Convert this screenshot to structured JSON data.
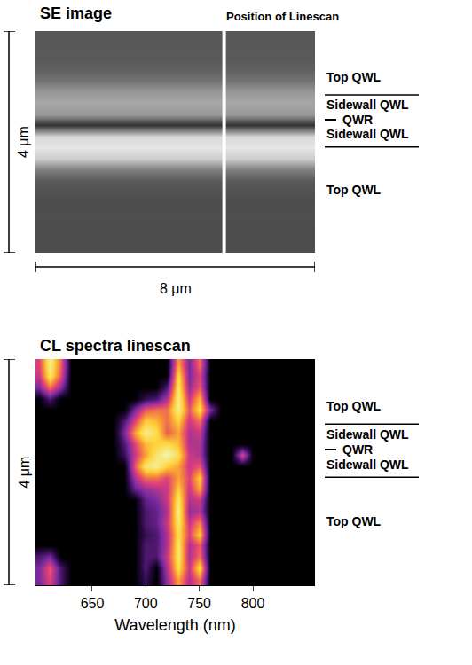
{
  "chart_data": [
    {
      "type": "heatmap",
      "title": "SE image",
      "color": "gray",
      "tick_labels": false,
      "linescan": {
        "x": 5.4,
        "label": "Position of Linescan"
      },
      "x_scale_label": "8 μm",
      "y_scale_label": "4 μm",
      "xlim": [
        0,
        8
      ],
      "ylim": [
        0,
        4
      ],
      "x": [
        2,
        6
      ],
      "y": [
        0.1,
        0.3,
        0.5,
        0.7,
        0.9,
        1.1,
        1.3,
        1.5,
        1.7,
        1.9,
        2.1,
        2.3,
        2.5,
        2.7,
        2.9,
        3.1,
        3.3,
        3.5,
        3.7,
        3.9
      ],
      "z": [
        [
          0.3,
          0.3
        ],
        [
          0.3,
          0.3
        ],
        [
          0.3,
          0.3
        ],
        [
          0.31,
          0.31
        ],
        [
          0.3,
          0.3
        ],
        [
          0.32,
          0.32
        ],
        [
          0.35,
          0.35
        ],
        [
          0.5,
          0.5
        ],
        [
          0.8,
          0.8
        ],
        [
          0.9,
          0.9
        ],
        [
          0.85,
          0.85
        ],
        [
          0.2,
          0.2
        ],
        [
          0.6,
          0.6
        ],
        [
          0.65,
          0.65
        ],
        [
          0.6,
          0.6
        ],
        [
          0.45,
          0.45
        ],
        [
          0.38,
          0.38
        ],
        [
          0.35,
          0.35
        ],
        [
          0.35,
          0.35
        ],
        [
          0.34,
          0.34
        ]
      ],
      "zlim": [
        0,
        1
      ],
      "annotations": [
        {
          "text": "Top QWL",
          "y": 3.17
        },
        {
          "text": "Sidewall QWL",
          "y": 2.67
        },
        {
          "text": "QWR",
          "y": 2.4,
          "marker": "dash"
        },
        {
          "text": "Sidewall QWL",
          "y": 2.14
        },
        {
          "text": "Top QWL",
          "y": 1.13
        }
      ],
      "region_bounds": [
        2.85,
        1.91
      ]
    },
    {
      "type": "heatmap",
      "title": "CL spectra linescan",
      "color": "hot",
      "tick_labels": "x",
      "x_label": "Wavelength (nm)",
      "y_scale_label": "4 μm",
      "xlim": [
        597,
        858
      ],
      "xticks": [
        650,
        700,
        750,
        800
      ],
      "ylim": [
        0,
        4
      ],
      "x": [
        600,
        610,
        620,
        630,
        640,
        650,
        660,
        670,
        680,
        690,
        700,
        710,
        720,
        730,
        740,
        750,
        760,
        770,
        780,
        790,
        800,
        810,
        820,
        830,
        840,
        850
      ],
      "y": [
        0.1,
        0.3,
        0.5,
        0.7,
        0.9,
        1.1,
        1.3,
        1.5,
        1.7,
        1.9,
        2.1,
        2.3,
        2.5,
        2.7,
        2.9,
        3.1,
        3.3,
        3.5,
        3.7,
        3.9
      ],
      "z": [
        [
          0.3,
          0.5,
          0.2,
          0,
          0,
          0,
          0,
          0,
          0,
          0,
          0.15,
          0,
          0.35,
          0.7,
          0.4,
          0.6,
          0,
          0,
          0,
          0,
          0,
          0,
          0,
          0,
          0,
          0
        ],
        [
          0.3,
          0.55,
          0.2,
          0,
          0,
          0,
          0,
          0,
          0,
          0,
          0.2,
          0,
          0.4,
          0.85,
          0.45,
          0.85,
          0,
          0,
          0,
          0,
          0,
          0,
          0,
          0,
          0,
          0
        ],
        [
          0.2,
          0.3,
          0,
          0,
          0,
          0,
          0,
          0,
          0,
          0,
          0.2,
          0.2,
          0.45,
          0.9,
          0.4,
          0.6,
          0,
          0,
          0,
          0,
          0,
          0,
          0,
          0,
          0,
          0
        ],
        [
          0,
          0,
          0,
          0,
          0,
          0,
          0,
          0,
          0,
          0,
          0.2,
          0.2,
          0.4,
          0.9,
          0.4,
          0.55,
          0,
          0,
          0,
          0,
          0,
          0,
          0,
          0,
          0,
          0
        ],
        [
          0,
          0,
          0,
          0,
          0,
          0,
          0,
          0,
          0,
          0,
          0.15,
          0.2,
          0.4,
          0.85,
          0.5,
          0.8,
          0,
          0,
          0,
          0,
          0,
          0,
          0,
          0,
          0,
          0
        ],
        [
          0,
          0,
          0,
          0,
          0,
          0,
          0,
          0,
          0,
          0,
          0.2,
          0.25,
          0.45,
          0.9,
          0.45,
          0.65,
          0,
          0,
          0,
          0,
          0,
          0,
          0,
          0,
          0,
          0
        ],
        [
          0,
          0,
          0,
          0,
          0,
          0,
          0,
          0,
          0,
          0,
          0.2,
          0.25,
          0.4,
          0.95,
          0.35,
          0.4,
          0,
          0,
          0,
          0,
          0,
          0,
          0,
          0,
          0,
          0
        ],
        [
          0,
          0,
          0,
          0,
          0,
          0,
          0,
          0,
          0,
          0,
          0.25,
          0.3,
          0.45,
          0.9,
          0.4,
          0.45,
          0,
          0,
          0,
          0,
          0,
          0,
          0,
          0,
          0,
          0
        ],
        [
          0,
          0,
          0,
          0,
          0,
          0,
          0,
          0,
          0,
          0.25,
          0.35,
          0.4,
          0.45,
          0.8,
          0.45,
          0.7,
          0,
          0,
          0,
          0,
          0,
          0,
          0,
          0,
          0,
          0
        ],
        [
          0,
          0,
          0,
          0,
          0,
          0,
          0,
          0,
          0,
          0.4,
          0.6,
          0.6,
          0.5,
          0.7,
          0.5,
          0.8,
          0,
          0,
          0,
          0,
          0,
          0,
          0,
          0,
          0,
          0
        ],
        [
          0,
          0,
          0,
          0,
          0,
          0,
          0,
          0,
          0,
          0.55,
          0.9,
          0.95,
          0.8,
          0.7,
          0.45,
          0.55,
          0,
          0,
          0,
          0,
          0,
          0,
          0,
          0,
          0,
          0
        ],
        [
          0,
          0,
          0,
          0,
          0,
          0,
          0,
          0,
          0.15,
          0.45,
          0.7,
          0.9,
          1,
          0.85,
          0.45,
          0.4,
          0,
          0,
          0,
          0.5,
          0,
          0,
          0,
          0,
          0,
          0
        ],
        [
          0,
          0,
          0,
          0,
          0,
          0,
          0,
          0,
          0.2,
          0.5,
          0.75,
          0.8,
          0.85,
          0.75,
          0.4,
          0.4,
          0,
          0,
          0,
          0,
          0,
          0,
          0,
          0,
          0,
          0
        ],
        [
          0,
          0,
          0,
          0,
          0,
          0,
          0,
          0,
          0.3,
          0.7,
          0.95,
          0.85,
          0.55,
          0.7,
          0.4,
          0.45,
          0,
          0,
          0,
          0,
          0,
          0,
          0,
          0,
          0,
          0
        ],
        [
          0,
          0,
          0,
          0,
          0,
          0,
          0,
          0,
          0.2,
          0.5,
          0.8,
          0.75,
          0.6,
          0.8,
          0.45,
          0.6,
          0,
          0,
          0,
          0,
          0,
          0,
          0,
          0,
          0,
          0
        ],
        [
          0,
          0,
          0,
          0,
          0,
          0,
          0,
          0,
          0,
          0.3,
          0.55,
          0.6,
          0.6,
          0.95,
          0.55,
          0.85,
          0.3,
          0,
          0,
          0,
          0,
          0,
          0,
          0,
          0,
          0
        ],
        [
          0,
          0.2,
          0,
          0,
          0,
          0,
          0,
          0,
          0,
          0,
          0.15,
          0.2,
          0.4,
          0.95,
          0.45,
          0.75,
          0,
          0,
          0,
          0,
          0,
          0,
          0,
          0,
          0,
          0
        ],
        [
          0.3,
          0.6,
          0.35,
          0,
          0,
          0,
          0,
          0,
          0,
          0,
          0,
          0,
          0.2,
          0.9,
          0.35,
          0.55,
          0,
          0,
          0,
          0,
          0,
          0,
          0,
          0,
          0,
          0
        ],
        [
          0.45,
          0.9,
          0.55,
          0,
          0,
          0,
          0,
          0,
          0,
          0,
          0,
          0,
          0,
          0.85,
          0.3,
          0.5,
          0,
          0,
          0,
          0,
          0,
          0,
          0,
          0,
          0,
          0
        ],
        [
          0.5,
          0.95,
          0.6,
          0,
          0,
          0,
          0,
          0,
          0,
          0,
          0,
          0,
          0,
          0.7,
          0.3,
          0.6,
          0,
          0,
          0,
          0,
          0,
          0,
          0,
          0,
          0,
          0
        ]
      ],
      "zlim": [
        0,
        1
      ],
      "annotations": [
        {
          "text": "Top QWL",
          "y": 3.17
        },
        {
          "text": "Sidewall QWL",
          "y": 2.67
        },
        {
          "text": "QWR",
          "y": 2.4,
          "marker": "dash"
        },
        {
          "text": "Sidewall QWL",
          "y": 2.14
        },
        {
          "text": "Top QWL",
          "y": 1.13
        }
      ],
      "region_bounds": [
        2.85,
        1.91
      ]
    }
  ]
}
